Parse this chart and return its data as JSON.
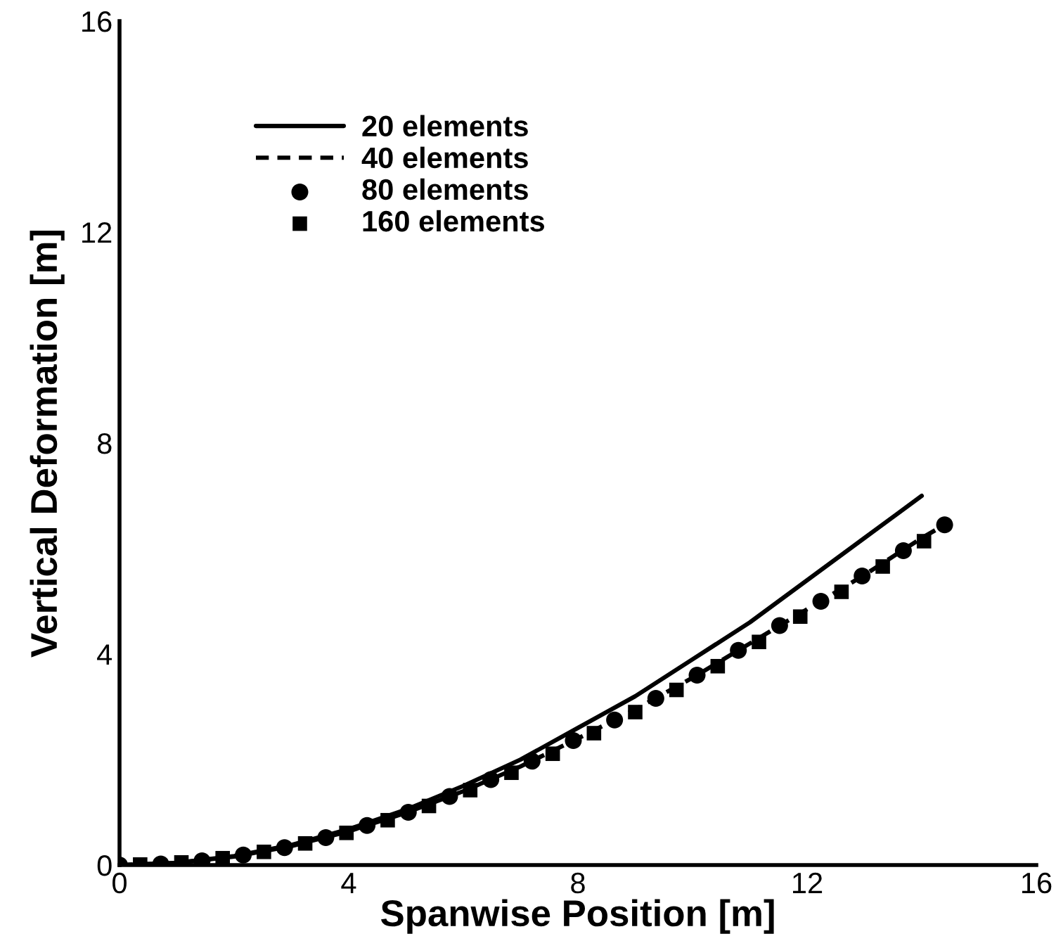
{
  "chart_data": {
    "type": "line",
    "xlabel": "Spanwise Position [m]",
    "ylabel": "Vertical Deformation [m]",
    "xlim": [
      0,
      16
    ],
    "ylim": [
      0,
      16
    ],
    "xticks": [
      0,
      4,
      8,
      12,
      16
    ],
    "yticks": [
      0,
      4,
      8,
      12,
      16
    ],
    "legend": "top left",
    "series": [
      {
        "name": "20 elements",
        "color": "#000000",
        "line_style": "solid",
        "x": [
          0,
          1,
          2,
          3,
          4,
          5,
          6,
          7,
          8,
          9,
          10,
          11,
          12,
          13,
          14
        ],
        "values": [
          0,
          0.04,
          0.17,
          0.38,
          0.68,
          1.05,
          1.5,
          2.0,
          2.6,
          3.2,
          3.9,
          4.6,
          5.4,
          6.2,
          7.0
        ]
      },
      {
        "name": "40 elements",
        "color": "#000000",
        "line_style": "dashed",
        "x": [
          0,
          1,
          2,
          3,
          4,
          5,
          6,
          7,
          8,
          9,
          10,
          11,
          12,
          13,
          14,
          14.4
        ],
        "values": [
          0,
          0.04,
          0.16,
          0.36,
          0.64,
          0.99,
          1.4,
          1.87,
          2.4,
          2.95,
          3.55,
          4.2,
          4.85,
          5.5,
          6.2,
          6.45
        ]
      },
      {
        "name": "80 elements",
        "color": "#000000",
        "type": "scatter",
        "marker": "circle",
        "x": [
          0,
          0.72,
          1.44,
          2.16,
          2.88,
          3.6,
          4.32,
          5.04,
          5.76,
          6.48,
          7.2,
          7.92,
          8.64,
          9.36,
          10.08,
          10.8,
          11.52,
          12.24,
          12.96,
          13.68,
          14.4
        ],
        "values": [
          0,
          0.02,
          0.08,
          0.19,
          0.33,
          0.52,
          0.75,
          1.0,
          1.3,
          1.62,
          1.97,
          2.36,
          2.75,
          3.16,
          3.6,
          4.07,
          4.54,
          5.0,
          5.48,
          5.96,
          6.45
        ]
      },
      {
        "name": "160 elements",
        "color": "#000000",
        "type": "scatter",
        "marker": "square",
        "x": [
          0.36,
          1.08,
          1.8,
          2.52,
          3.24,
          3.96,
          4.68,
          5.4,
          6.12,
          6.84,
          7.56,
          8.28,
          9.0,
          9.72,
          10.44,
          11.16,
          11.88,
          12.6,
          13.32,
          14.04
        ],
        "values": [
          0.01,
          0.05,
          0.13,
          0.25,
          0.41,
          0.61,
          0.85,
          1.12,
          1.42,
          1.75,
          2.11,
          2.5,
          2.9,
          3.32,
          3.77,
          4.23,
          4.71,
          5.18,
          5.66,
          6.14
        ]
      }
    ]
  }
}
